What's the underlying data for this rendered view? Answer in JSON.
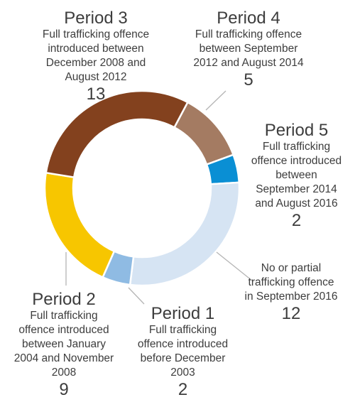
{
  "chart_data": {
    "type": "pie",
    "donut": true,
    "slices": [
      {
        "key": "period4",
        "title": "Period 4",
        "description": "Full trafficking offence between September 2012 and August 2014",
        "value": 5,
        "color": "#a47b62"
      },
      {
        "key": "period5",
        "title": "Period 5",
        "description": "Full trafficking offence introduced between September 2014 and August 2016",
        "value": 2,
        "color": "#0a8fd4"
      },
      {
        "key": "none",
        "title": "",
        "description": "No or partial trafficking offence in September 2016",
        "value": 12,
        "color": "#d6e4f3"
      },
      {
        "key": "period1",
        "title": "Period 1",
        "description": "Full trafficking offence introduced before December 2003",
        "value": 2,
        "color": "#8fbbe3"
      },
      {
        "key": "period2",
        "title": "Period 2",
        "description": "Full trafficking offence introduced between January 2004 and November 2008",
        "value": 9,
        "color": "#f7c600"
      },
      {
        "key": "period3",
        "title": "Period 3",
        "description": "Full trafficking offence introduced between December 2008 and August 2012",
        "value": 13,
        "color": "#83411e"
      }
    ]
  },
  "labels": {
    "period3": {
      "title": "Period 3",
      "lines": [
        "Full trafficking offence",
        "introduced between",
        "December 2008 and",
        "August 2012"
      ],
      "count": "13"
    },
    "period4": {
      "title": "Period 4",
      "lines": [
        "Full trafficking offence",
        "between September",
        "2012 and August 2014"
      ],
      "count": "5"
    },
    "period5": {
      "title": "Period 5",
      "lines": [
        "Full trafficking",
        "offence introduced",
        "between",
        "September 2014",
        "and August 2016"
      ],
      "count": "2"
    },
    "none": {
      "title": "",
      "lines": [
        "No or partial",
        "trafficking offence",
        "in September 2016"
      ],
      "count": "12"
    },
    "period1": {
      "title": "Period 1",
      "lines": [
        "Full trafficking",
        "offence introduced",
        "before December",
        "2003"
      ],
      "count": "2"
    },
    "period2": {
      "title": "Period 2",
      "lines": [
        "Full trafficking",
        "offence introduced",
        "between January",
        "2004 and November",
        "2008"
      ],
      "count": "9"
    }
  }
}
